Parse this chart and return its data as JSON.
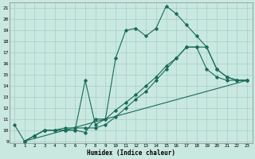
{
  "xlabel": "Humidex (Indice chaleur)",
  "bg_color": "#c8e8e0",
  "line_color": "#1a6b5a",
  "grid_color": "#a0c8c0",
  "xlim": [
    -0.5,
    23.5
  ],
  "ylim": [
    8.8,
    21.5
  ],
  "yticks": [
    9,
    10,
    11,
    12,
    13,
    14,
    15,
    16,
    17,
    18,
    19,
    20,
    21
  ],
  "xticks": [
    0,
    1,
    2,
    3,
    4,
    5,
    6,
    7,
    8,
    9,
    10,
    11,
    12,
    13,
    14,
    15,
    16,
    17,
    18,
    19,
    20,
    21,
    22,
    23
  ],
  "line1_x": [
    0,
    1,
    2,
    3,
    4,
    5,
    6,
    7,
    8,
    9,
    10,
    11,
    12,
    13,
    14,
    15,
    16,
    17,
    18,
    19,
    20,
    21,
    22,
    23
  ],
  "line1_y": [
    10.5,
    9.0,
    9.5,
    10.0,
    10.0,
    10.0,
    10.0,
    9.8,
    11.0,
    11.0,
    16.5,
    19.0,
    19.2,
    18.5,
    19.2,
    21.2,
    20.5,
    19.5,
    18.5,
    17.5,
    15.5,
    14.8,
    14.5,
    14.5
  ],
  "line2_x": [
    1,
    2,
    3,
    4,
    5,
    6,
    7,
    8,
    9,
    10,
    11,
    12,
    13,
    14,
    15,
    16,
    17,
    18,
    19,
    20,
    21,
    22,
    23
  ],
  "line2_y": [
    9.0,
    9.5,
    10.0,
    10.0,
    10.2,
    10.2,
    10.2,
    10.2,
    10.5,
    11.2,
    12.0,
    12.8,
    13.5,
    14.5,
    15.5,
    16.5,
    17.5,
    17.5,
    17.5,
    15.5,
    14.8,
    14.5,
    14.5
  ],
  "line3_x": [
    1,
    23
  ],
  "line3_y": [
    9.0,
    14.5
  ],
  "line4_x": [
    1,
    2,
    3,
    4,
    5,
    6,
    7,
    8,
    9,
    10,
    11,
    12,
    13,
    14,
    15,
    16,
    17,
    18,
    19,
    20,
    21,
    22,
    23
  ],
  "line4_y": [
    9.0,
    9.5,
    10.0,
    10.0,
    10.0,
    10.0,
    14.5,
    10.5,
    11.0,
    11.8,
    12.5,
    13.2,
    14.0,
    14.8,
    15.8,
    16.5,
    17.5,
    17.5,
    15.5,
    14.8,
    14.5,
    14.5,
    14.5
  ]
}
